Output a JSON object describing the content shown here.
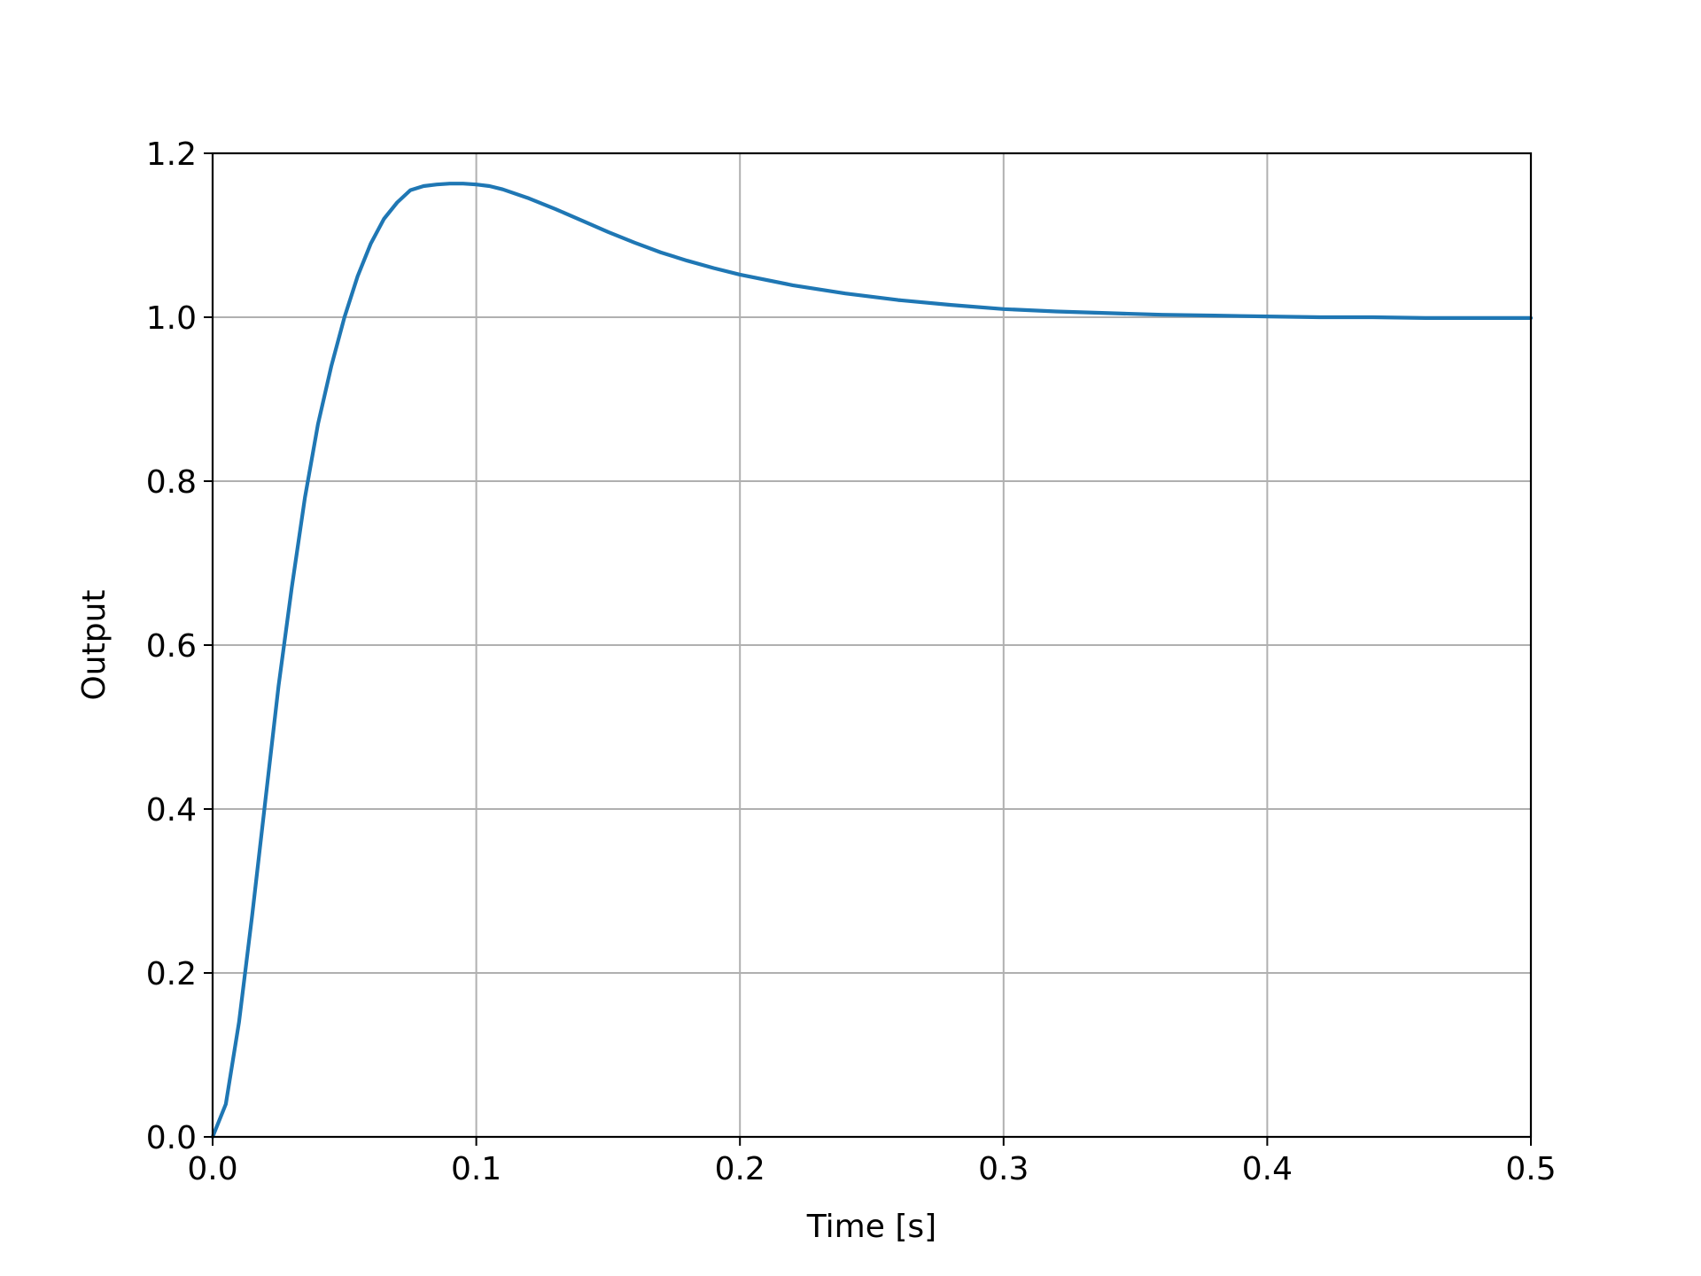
{
  "chart_data": {
    "type": "line",
    "title": "",
    "xlabel": "Time [s]",
    "ylabel": "Output",
    "xlim": [
      0.0,
      0.5
    ],
    "ylim": [
      0.0,
      1.2
    ],
    "xticks": [
      "0.0",
      "0.1",
      "0.2",
      "0.3",
      "0.4",
      "0.5"
    ],
    "yticks": [
      "0.0",
      "0.2",
      "0.4",
      "0.6",
      "0.8",
      "1.0",
      "1.2"
    ],
    "grid": true,
    "legend": "none",
    "series": [
      {
        "color": "#1f77b4",
        "x": [
          0.0,
          0.005,
          0.01,
          0.015,
          0.02,
          0.025,
          0.03,
          0.035,
          0.04,
          0.045,
          0.05,
          0.055,
          0.06,
          0.065,
          0.07,
          0.075,
          0.08,
          0.085,
          0.09,
          0.095,
          0.1,
          0.105,
          0.11,
          0.12,
          0.13,
          0.14,
          0.15,
          0.16,
          0.17,
          0.18,
          0.19,
          0.2,
          0.22,
          0.24,
          0.26,
          0.28,
          0.3,
          0.32,
          0.34,
          0.36,
          0.38,
          0.4,
          0.42,
          0.44,
          0.46,
          0.48,
          0.5
        ],
        "y": [
          0.0,
          0.04,
          0.14,
          0.27,
          0.41,
          0.55,
          0.67,
          0.78,
          0.87,
          0.94,
          1.0,
          1.05,
          1.09,
          1.12,
          1.14,
          1.155,
          1.16,
          1.162,
          1.163,
          1.163,
          1.162,
          1.16,
          1.156,
          1.145,
          1.132,
          1.118,
          1.104,
          1.091,
          1.079,
          1.069,
          1.06,
          1.052,
          1.039,
          1.029,
          1.021,
          1.015,
          1.01,
          1.007,
          1.005,
          1.003,
          1.002,
          1.001,
          1.0,
          1.0,
          0.999,
          0.999,
          0.999
        ]
      }
    ]
  }
}
